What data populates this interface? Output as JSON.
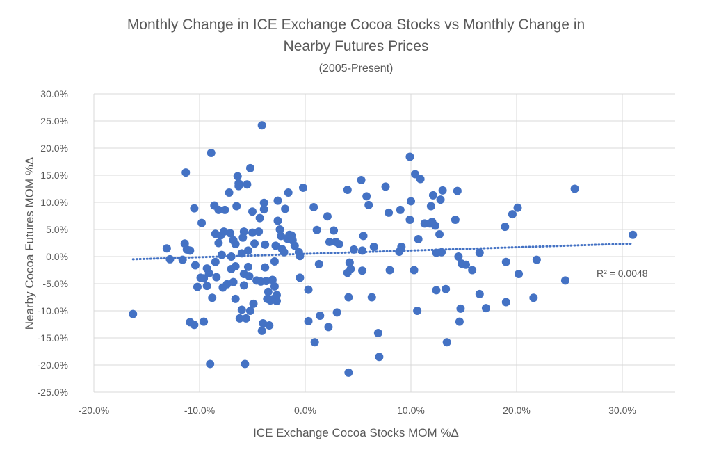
{
  "chart_data": {
    "type": "scatter",
    "title": "Monthly Change in ICE Exchange Cocoa Stocks vs Monthly Change in Nearby Futures Prices",
    "title_lines": [
      "Monthly Change in ICE Exchange Cocoa Stocks vs Monthly Change in",
      "Nearby Futures Prices"
    ],
    "subtitle": "(2005-Present)",
    "xlabel": "ICE Exchange Cocoa Stocks MOM %Δ",
    "ylabel": "Nearby Cocoa Futures MOM %Δ",
    "xlim": [
      -20,
      35
    ],
    "ylim": [
      -25,
      30
    ],
    "x_ticks": [
      "-20.0%",
      "-10.0%",
      "0.0%",
      "10.0%",
      "20.0%",
      "30.0%"
    ],
    "x_tick_values": [
      -20,
      -10,
      0,
      10,
      20,
      30
    ],
    "y_ticks": [
      "30.0%",
      "25.0%",
      "20.0%",
      "15.0%",
      "10.0%",
      "5.0%",
      "0.0%",
      "-5.0%",
      "-10.0%",
      "-15.0%",
      "-20.0%",
      "-25.0%"
    ],
    "y_tick_values": [
      30,
      25,
      20,
      15,
      10,
      5,
      0,
      -5,
      -10,
      -15,
      -20,
      -25
    ],
    "grid": true,
    "marker_color": "#4472C4",
    "trendline": {
      "type": "linear",
      "style": "dotted",
      "color": "#4472C4",
      "slope": 0.061,
      "intercept": 0.5,
      "x_range": [
        -16.3,
        31.0
      ],
      "label": "R² = 0.0048"
    },
    "points": [
      [
        -16.3,
        -10.6
      ],
      [
        -13.1,
        1.5
      ],
      [
        -12.8,
        -0.5
      ],
      [
        -11.6,
        -0.6
      ],
      [
        -11.4,
        2.4
      ],
      [
        -11.3,
        15.5
      ],
      [
        -11.2,
        1.3
      ],
      [
        -10.9,
        1.1
      ],
      [
        -10.9,
        -12.1
      ],
      [
        -10.5,
        -12.6
      ],
      [
        -10.5,
        8.9
      ],
      [
        -10.4,
        -1.6
      ],
      [
        -10.2,
        -5.6
      ],
      [
        -9.9,
        -3.9
      ],
      [
        -9.8,
        6.2
      ],
      [
        -9.6,
        -4.0
      ],
      [
        -9.6,
        -12.0
      ],
      [
        -9.3,
        -2.2
      ],
      [
        -9.3,
        -5.4
      ],
      [
        -9.1,
        -3.1
      ],
      [
        -9.0,
        -19.8
      ],
      [
        -8.9,
        19.1
      ],
      [
        -8.8,
        -7.6
      ],
      [
        -8.6,
        9.4
      ],
      [
        -8.5,
        4.2
      ],
      [
        -8.5,
        -1.0
      ],
      [
        -8.4,
        -3.8
      ],
      [
        -8.2,
        8.6
      ],
      [
        -8.2,
        2.5
      ],
      [
        -8.0,
        3.9
      ],
      [
        -7.9,
        0.3
      ],
      [
        -7.8,
        -5.7
      ],
      [
        -7.7,
        4.6
      ],
      [
        -7.6,
        8.6
      ],
      [
        -7.4,
        -5.1
      ],
      [
        -7.2,
        11.8
      ],
      [
        -7.1,
        4.3
      ],
      [
        -7.0,
        0.0
      ],
      [
        -7.0,
        -2.3
      ],
      [
        -6.8,
        3.0
      ],
      [
        -6.8,
        -4.7
      ],
      [
        -6.6,
        2.3
      ],
      [
        -6.6,
        -1.8
      ],
      [
        -6.6,
        -7.8
      ],
      [
        -6.5,
        9.3
      ],
      [
        -6.4,
        14.8
      ],
      [
        -6.3,
        13.0
      ],
      [
        -6.3,
        13.5
      ],
      [
        -6.2,
        -11.4
      ],
      [
        -6.0,
        0.6
      ],
      [
        -6.0,
        -9.8
      ],
      [
        -5.9,
        3.5
      ],
      [
        -5.8,
        4.6
      ],
      [
        -5.8,
        -3.2
      ],
      [
        -5.8,
        -5.3
      ],
      [
        -5.7,
        -19.8
      ],
      [
        -5.6,
        -11.4
      ],
      [
        -5.5,
        13.3
      ],
      [
        -5.4,
        1.1
      ],
      [
        -5.4,
        -1.9
      ],
      [
        -5.3,
        -3.6
      ],
      [
        -5.2,
        16.3
      ],
      [
        -5.2,
        -10.0
      ],
      [
        -5.0,
        8.3
      ],
      [
        -5.0,
        4.4
      ],
      [
        -4.9,
        -8.7
      ],
      [
        -4.8,
        2.4
      ],
      [
        -4.6,
        -4.4
      ],
      [
        -4.4,
        4.6
      ],
      [
        -4.3,
        7.1
      ],
      [
        -4.2,
        -4.6
      ],
      [
        -4.1,
        24.2
      ],
      [
        -4.1,
        -13.7
      ],
      [
        -4.0,
        -12.3
      ],
      [
        -3.9,
        8.7
      ],
      [
        -3.9,
        9.9
      ],
      [
        -3.8,
        2.2
      ],
      [
        -3.8,
        -2.0
      ],
      [
        -3.7,
        -4.5
      ],
      [
        -3.6,
        -7.8
      ],
      [
        -3.5,
        -6.5
      ],
      [
        -3.4,
        -12.7
      ],
      [
        -3.3,
        -8.1
      ],
      [
        -3.1,
        -4.3
      ],
      [
        -3.0,
        -7.8
      ],
      [
        -2.9,
        -0.9
      ],
      [
        -2.9,
        -5.5
      ],
      [
        -2.8,
        2.0
      ],
      [
        -2.7,
        -7.1
      ],
      [
        -2.7,
        -8.2
      ],
      [
        -2.6,
        10.3
      ],
      [
        -2.6,
        6.6
      ],
      [
        -2.4,
        5.0
      ],
      [
        -2.3,
        3.8
      ],
      [
        -2.2,
        1.4
      ],
      [
        -2.0,
        0.8
      ],
      [
        -1.9,
        8.8
      ],
      [
        -1.7,
        3.3
      ],
      [
        -1.6,
        11.8
      ],
      [
        -1.5,
        4.0
      ],
      [
        -1.3,
        3.9
      ],
      [
        -1.2,
        3.0
      ],
      [
        -1.0,
        2.0
      ],
      [
        -0.6,
        0.8
      ],
      [
        -0.5,
        0.1
      ],
      [
        -0.5,
        -3.9
      ],
      [
        -0.2,
        12.7
      ],
      [
        0.3,
        -6.1
      ],
      [
        0.3,
        -11.9
      ],
      [
        0.8,
        9.1
      ],
      [
        0.9,
        -15.8
      ],
      [
        1.1,
        4.9
      ],
      [
        1.3,
        -1.4
      ],
      [
        1.4,
        -10.9
      ],
      [
        2.1,
        7.4
      ],
      [
        2.2,
        -13.0
      ],
      [
        2.3,
        2.7
      ],
      [
        2.7,
        4.8
      ],
      [
        2.9,
        2.7
      ],
      [
        3.0,
        -10.3
      ],
      [
        3.2,
        2.3
      ],
      [
        4.0,
        12.3
      ],
      [
        4.0,
        -3.0
      ],
      [
        4.1,
        -21.4
      ],
      [
        4.1,
        -7.5
      ],
      [
        4.2,
        -1.1
      ],
      [
        4.3,
        -2.3
      ],
      [
        4.6,
        1.3
      ],
      [
        5.3,
        14.1
      ],
      [
        5.4,
        1.1
      ],
      [
        5.4,
        -2.6
      ],
      [
        5.5,
        3.8
      ],
      [
        5.8,
        11.1
      ],
      [
        6.0,
        9.5
      ],
      [
        6.3,
        -7.5
      ],
      [
        6.5,
        1.8
      ],
      [
        6.9,
        -14.1
      ],
      [
        7.0,
        -18.5
      ],
      [
        7.6,
        12.9
      ],
      [
        7.9,
        8.1
      ],
      [
        8.0,
        -2.5
      ],
      [
        8.9,
        0.9
      ],
      [
        9.0,
        8.6
      ],
      [
        9.1,
        1.8
      ],
      [
        9.9,
        18.4
      ],
      [
        9.9,
        6.8
      ],
      [
        10.0,
        10.2
      ],
      [
        10.3,
        -2.5
      ],
      [
        10.4,
        15.2
      ],
      [
        10.6,
        -10.0
      ],
      [
        10.7,
        3.2
      ],
      [
        10.9,
        14.3
      ],
      [
        11.3,
        6.1
      ],
      [
        11.8,
        6.1
      ],
      [
        11.9,
        9.3
      ],
      [
        12.0,
        6.4
      ],
      [
        12.1,
        11.3
      ],
      [
        12.3,
        5.7
      ],
      [
        12.4,
        -6.2
      ],
      [
        12.4,
        0.7
      ],
      [
        12.7,
        4.1
      ],
      [
        12.8,
        10.5
      ],
      [
        12.9,
        0.8
      ],
      [
        13.0,
        12.2
      ],
      [
        13.3,
        -6.0
      ],
      [
        13.4,
        -15.8
      ],
      [
        14.2,
        6.8
      ],
      [
        14.4,
        12.1
      ],
      [
        14.5,
        0.0
      ],
      [
        14.6,
        -12.0
      ],
      [
        14.7,
        -9.6
      ],
      [
        14.8,
        -1.3
      ],
      [
        15.2,
        -1.5
      ],
      [
        15.8,
        -2.5
      ],
      [
        16.5,
        0.7
      ],
      [
        16.5,
        -6.9
      ],
      [
        17.1,
        -9.5
      ],
      [
        18.9,
        5.5
      ],
      [
        19.0,
        -1.0
      ],
      [
        19.0,
        -8.4
      ],
      [
        19.6,
        7.8
      ],
      [
        20.1,
        9.0
      ],
      [
        20.2,
        -3.2
      ],
      [
        21.6,
        -7.6
      ],
      [
        21.9,
        -0.6
      ],
      [
        24.6,
        -4.4
      ],
      [
        25.5,
        12.5
      ],
      [
        31.0,
        4.0
      ]
    ]
  }
}
